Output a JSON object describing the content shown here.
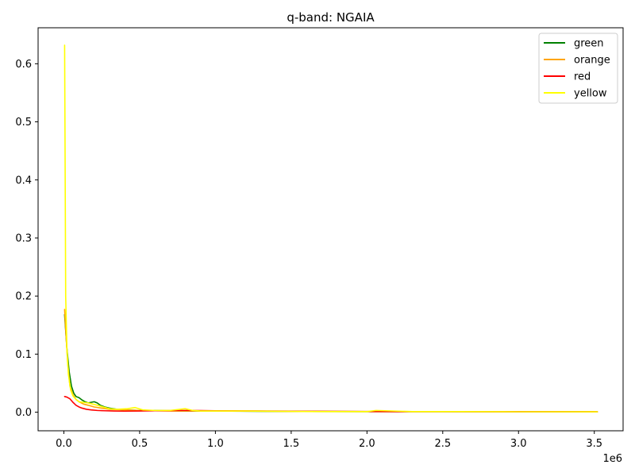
{
  "chart_data": {
    "type": "line",
    "title": "q-band: NGAIA",
    "xlabel": "",
    "ylabel": "",
    "x_offset_label": "1e6",
    "xlim": [
      -0.17,
      3.69
    ],
    "ylim": [
      -0.032,
      0.662
    ],
    "x_ticks": [
      {
        "value": 0.0,
        "label": "0.0"
      },
      {
        "value": 0.5,
        "label": "0.5"
      },
      {
        "value": 1.0,
        "label": "1.0"
      },
      {
        "value": 1.5,
        "label": "1.5"
      },
      {
        "value": 2.0,
        "label": "2.0"
      },
      {
        "value": 2.5,
        "label": "2.5"
      },
      {
        "value": 3.0,
        "label": "3.0"
      },
      {
        "value": 3.5,
        "label": "3.5"
      }
    ],
    "y_ticks": [
      {
        "value": 0.0,
        "label": "0.0"
      },
      {
        "value": 0.1,
        "label": "0.1"
      },
      {
        "value": 0.2,
        "label": "0.2"
      },
      {
        "value": 0.3,
        "label": "0.3"
      },
      {
        "value": 0.4,
        "label": "0.4"
      },
      {
        "value": 0.5,
        "label": "0.5"
      },
      {
        "value": 0.6,
        "label": "0.6"
      }
    ],
    "grid": false,
    "legend_position": "top-right",
    "series": [
      {
        "name": "green",
        "color": "#008000",
        "x": [
          0.005,
          0.02,
          0.035,
          0.05,
          0.065,
          0.08,
          0.1,
          0.12,
          0.14,
          0.16,
          0.18,
          0.2,
          0.22,
          0.24,
          0.27,
          0.3,
          0.35,
          0.4,
          0.5,
          0.6,
          0.8,
          1.0,
          1.3,
          1.6,
          2.0,
          2.5,
          3.0,
          3.52
        ],
        "y": [
          0.168,
          0.11,
          0.07,
          0.045,
          0.033,
          0.027,
          0.025,
          0.021,
          0.018,
          0.016,
          0.017,
          0.018,
          0.016,
          0.012,
          0.009,
          0.007,
          0.005,
          0.004,
          0.003,
          0.003,
          0.002,
          0.002,
          0.0015,
          0.0012,
          0.001,
          0.001,
          0.0008,
          0.0007
        ]
      },
      {
        "name": "orange",
        "color": "#FFA500",
        "x": [
          0.005,
          0.015,
          0.025,
          0.04,
          0.06,
          0.08,
          0.1,
          0.13,
          0.16,
          0.2,
          0.25,
          0.3,
          0.4,
          0.5,
          0.7,
          1.0,
          1.5,
          2.0,
          2.5,
          3.0,
          3.52
        ],
        "y": [
          0.177,
          0.13,
          0.085,
          0.045,
          0.03,
          0.022,
          0.018,
          0.014,
          0.012,
          0.009,
          0.007,
          0.005,
          0.004,
          0.003,
          0.002,
          0.002,
          0.0015,
          0.001,
          0.001,
          0.0008,
          0.0007
        ]
      },
      {
        "name": "red",
        "color": "#FF0000",
        "x": [
          0.005,
          0.02,
          0.04,
          0.06,
          0.08,
          0.1,
          0.12,
          0.15,
          0.18,
          0.22,
          0.27,
          0.33,
          0.4,
          0.5,
          0.6,
          0.8,
          1.0,
          1.3,
          1.6,
          2.0,
          2.5,
          3.0,
          3.52
        ],
        "y": [
          0.027,
          0.026,
          0.023,
          0.017,
          0.012,
          0.009,
          0.007,
          0.005,
          0.004,
          0.003,
          0.0025,
          0.002,
          0.0018,
          0.002,
          0.0025,
          0.003,
          0.0025,
          0.002,
          0.0015,
          0.0012,
          0.001,
          0.0009,
          0.0008
        ]
      },
      {
        "name": "yellow",
        "color": "#FFFF00",
        "x": [
          0.005,
          0.012,
          0.02,
          0.03,
          0.045,
          0.06,
          0.08,
          0.1,
          0.13,
          0.16,
          0.19,
          0.22,
          0.26,
          0.3,
          0.35,
          0.42,
          0.47,
          0.52,
          0.6,
          0.7,
          0.8,
          0.85,
          0.9,
          1.0,
          1.2,
          1.4,
          1.7,
          2.0,
          2.06,
          2.3,
          2.6,
          3.0,
          3.52
        ],
        "y": [
          0.632,
          0.2,
          0.11,
          0.065,
          0.038,
          0.028,
          0.022,
          0.018,
          0.017,
          0.016,
          0.014,
          0.012,
          0.009,
          0.006,
          0.005,
          0.006,
          0.008,
          0.004,
          0.003,
          0.003,
          0.006,
          0.003,
          0.002,
          0.002,
          0.002,
          0.0015,
          0.001,
          0.001,
          0.003,
          0.001,
          0.001,
          0.0008,
          0.0007
        ]
      }
    ]
  }
}
